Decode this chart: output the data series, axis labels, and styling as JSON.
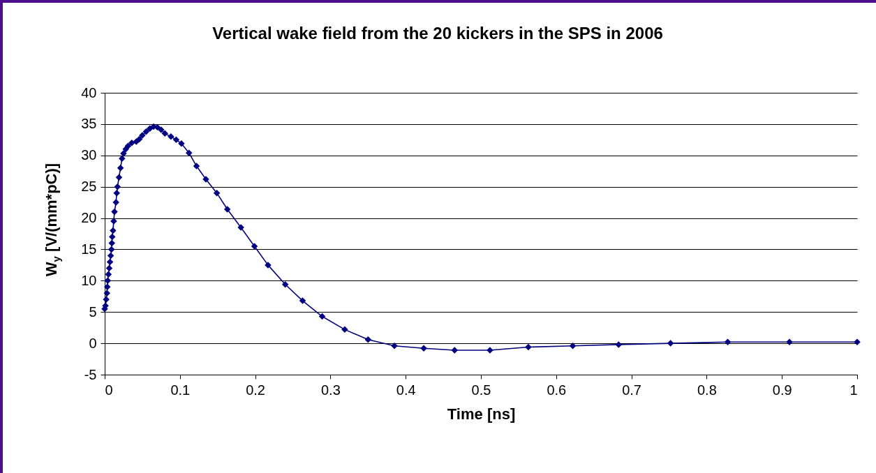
{
  "chart_data": {
    "type": "line",
    "title": "Vertical wake field from the 20 kickers in the SPS in 2006",
    "xlabel": "Time [ns]",
    "ylabel": "W$_{y}$ [V/(mm*pC)]",
    "series": [
      {
        "color": "#000080",
        "x": [
          0,
          0.001,
          0.002,
          0.003,
          0.0035,
          0.004,
          0.005,
          0.006,
          0.007,
          0.008,
          0.009,
          0.0095,
          0.01,
          0.011,
          0.012,
          0.013,
          0.015,
          0.016,
          0.017,
          0.019,
          0.021,
          0.023,
          0.025,
          0.028,
          0.031,
          0.036,
          0.042,
          0.046,
          0.05,
          0.055,
          0.06,
          0.065,
          0.07,
          0.075,
          0.08,
          0.088,
          0.095,
          0.102,
          0.112,
          0.122,
          0.1345,
          0.149,
          0.163,
          0.181,
          0.199,
          0.217,
          0.24,
          0.263,
          0.289,
          0.319,
          0.35,
          0.385,
          0.424,
          0.465,
          0.512,
          0.563,
          0.622,
          0.683,
          0.752,
          0.828,
          0.91,
          1.0
        ],
        "values": [
          5.5,
          6,
          7,
          8,
          9,
          10,
          11,
          12,
          13,
          14,
          15,
          16,
          17,
          18,
          19.5,
          21,
          22.5,
          24,
          25,
          26.5,
          28,
          29.5,
          30.3,
          31,
          31.5,
          32,
          32.2,
          32.6,
          33.2,
          33.8,
          34.3,
          34.6,
          34.5,
          34.1,
          33.5,
          33,
          32.5,
          31.9,
          30.4,
          28.3,
          26.2,
          24,
          21.4,
          18.5,
          15.5,
          12.5,
          9.4,
          6.8,
          4.3,
          2.2,
          0.6,
          -0.4,
          -0.8,
          -1.1,
          -1.1,
          -0.6,
          -0.4,
          -0.2,
          0,
          0.2,
          0.2,
          0.2
        ]
      }
    ],
    "xlim": [
      0,
      1
    ],
    "xticks": [
      0,
      0.1,
      0.2,
      0.3,
      0.4,
      0.5,
      0.6,
      0.7,
      0.8,
      0.9,
      1
    ],
    "ylim": [
      -5,
      40
    ],
    "yticks": [
      -5,
      0,
      5,
      10,
      15,
      20,
      25,
      30,
      35,
      40
    ],
    "grid": "y",
    "marker": "diamond",
    "line_style": "solid"
  }
}
